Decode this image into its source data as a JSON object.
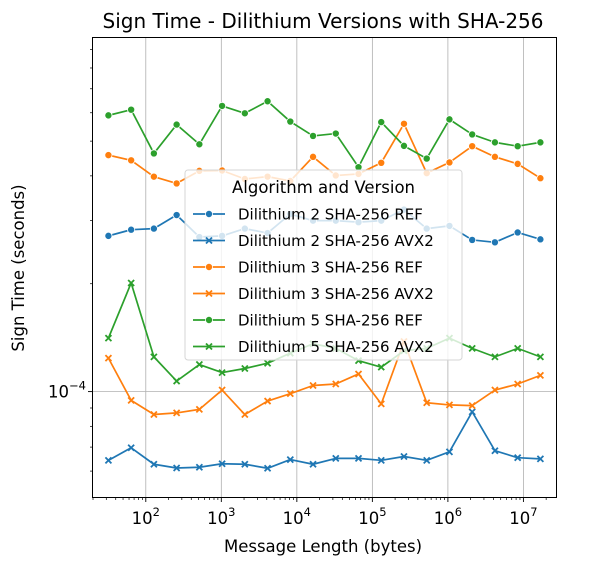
{
  "chart_data": {
    "type": "line",
    "title": "Sign Time - Dilithium Versions with SHA-256",
    "xlabel": "Message Length (bytes)",
    "ylabel": "Sign Time (seconds)",
    "x_scale": "log",
    "y_scale": "log",
    "xlim": [
      20,
      27000000
    ],
    "ylim": [
      5.08e-05,
      0.00097
    ],
    "x_ticks": [
      {
        "value": 100,
        "base": "10",
        "exp": "2"
      },
      {
        "value": 1000,
        "base": "10",
        "exp": "3"
      },
      {
        "value": 10000,
        "base": "10",
        "exp": "4"
      },
      {
        "value": 100000,
        "base": "10",
        "exp": "5"
      },
      {
        "value": 1000000,
        "base": "10",
        "exp": "6"
      },
      {
        "value": 10000000,
        "base": "10",
        "exp": "7"
      }
    ],
    "y_ticks": [
      {
        "value": 0.0001,
        "base": "10",
        "exp": "−4"
      }
    ],
    "grid": true,
    "legend": {
      "title": "Algorithm and Version",
      "placement": "center"
    },
    "x": [
      32,
      64,
      128,
      256,
      512,
      1024,
      2048,
      4096,
      8192,
      16384,
      32768,
      65536,
      131072,
      262144,
      524288,
      1048576,
      2097152,
      4194304,
      8388608,
      16777216
    ],
    "series": [
      {
        "name": "Dilithium 2 SHA-256 REF",
        "color": "#1f77b4",
        "marker": "circle",
        "values": [
          0.000272,
          0.000283,
          0.000285,
          0.000311,
          0.00027,
          0.000272,
          0.000285,
          0.000277,
          0.000313,
          0.0003,
          0.0003,
          0.000297,
          0.0003,
          0.000322,
          0.000285,
          0.00029,
          0.000265,
          0.000261,
          0.000278,
          0.000266
        ]
      },
      {
        "name": "Dilithium 2 SHA-256 AVX2",
        "color": "#1f77b4",
        "marker": "x",
        "values": [
          6.43e-05,
          6.97e-05,
          6.27e-05,
          6.12e-05,
          6.15e-05,
          6.29e-05,
          6.27e-05,
          6.11e-05,
          6.46e-05,
          6.27e-05,
          6.51e-05,
          6.51e-05,
          6.43e-05,
          6.59e-05,
          6.43e-05,
          6.79e-05,
          8.78e-05,
          6.84e-05,
          6.54e-05,
          6.49e-05
        ]
      },
      {
        "name": "Dilithium 3 SHA-256 REF",
        "color": "#ff7f0e",
        "marker": "circle",
        "values": [
          0.000457,
          0.000442,
          0.000398,
          0.000381,
          0.000413,
          0.000414,
          0.000392,
          0.000398,
          0.000387,
          0.000452,
          0.000401,
          0.000405,
          0.000435,
          0.000559,
          0.000407,
          0.000436,
          0.000484,
          0.000452,
          0.000432,
          0.000394
        ]
      },
      {
        "name": "Dilithium 3 SHA-256 AVX2",
        "color": "#ff7f0e",
        "marker": "x",
        "values": [
          0.000124,
          9.45e-05,
          8.63e-05,
          8.72e-05,
          8.92e-05,
          0.000101,
          8.63e-05,
          9.41e-05,
          9.87e-05,
          0.000104,
          0.000105,
          0.000112,
          9.24e-05,
          0.000138,
          9.31e-05,
          9.18e-05,
          9.14e-05,
          0.000101,
          0.000105,
          0.000111
        ]
      },
      {
        "name": "Dilithium 5 SHA-256 REF",
        "color": "#2ca02c",
        "marker": "circle",
        "values": [
          0.00059,
          0.000612,
          0.000462,
          0.000556,
          0.00049,
          0.000627,
          0.000598,
          0.000646,
          0.000567,
          0.000517,
          0.000525,
          0.000423,
          0.000565,
          0.000485,
          0.000447,
          0.000575,
          0.000522,
          0.000496,
          0.000484,
          0.000496
        ]
      },
      {
        "name": "Dilithium 5 SHA-256 AVX2",
        "color": "#2ca02c",
        "marker": "x",
        "values": [
          0.000141,
          0.000201,
          0.000125,
          0.000107,
          0.000119,
          0.000113,
          0.000116,
          0.00012,
          0.000128,
          0.000136,
          0.000132,
          0.000122,
          0.000117,
          0.00013,
          0.000132,
          0.000141,
          0.000132,
          0.000125,
          0.000132,
          0.000125
        ]
      }
    ]
  }
}
